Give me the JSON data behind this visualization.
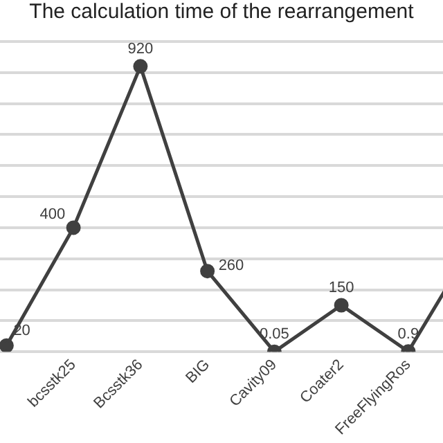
{
  "chart_data": {
    "type": "line",
    "title": "The calculation time of the rearrangement",
    "categories": [
      null,
      "bcsstk25",
      "Bcsstk36",
      "BIG",
      "Cavity09",
      "Coater2",
      "FreeFlyingRos",
      null
    ],
    "series": [
      {
        "color": "#404040",
        "values": [
          20,
          400,
          920,
          260,
          0.05,
          150,
          0.9,
          360
        ],
        "value_labels": [
          "20",
          "400",
          "920",
          "260",
          "0.05",
          "150",
          "0.9",
          null
        ]
      }
    ],
    "ylim": [
      0,
      1000
    ],
    "yticks": [
      {
        "value": 0,
        "label": null
      },
      {
        "value": 100,
        "label": null
      },
      {
        "value": 200,
        "label": null
      },
      {
        "value": 300,
        "label": null
      },
      {
        "value": 400,
        "label": null
      },
      {
        "value": 500,
        "label": null
      },
      {
        "value": 600,
        "label": null
      },
      {
        "value": 700,
        "label": null
      },
      {
        "value": 800,
        "label": null
      },
      {
        "value": 900,
        "label": null
      },
      {
        "value": 1000,
        "label": null
      }
    ],
    "grid": "y",
    "marker": "circle",
    "line_style": "solid",
    "legend": false,
    "tick_labels": "x"
  }
}
